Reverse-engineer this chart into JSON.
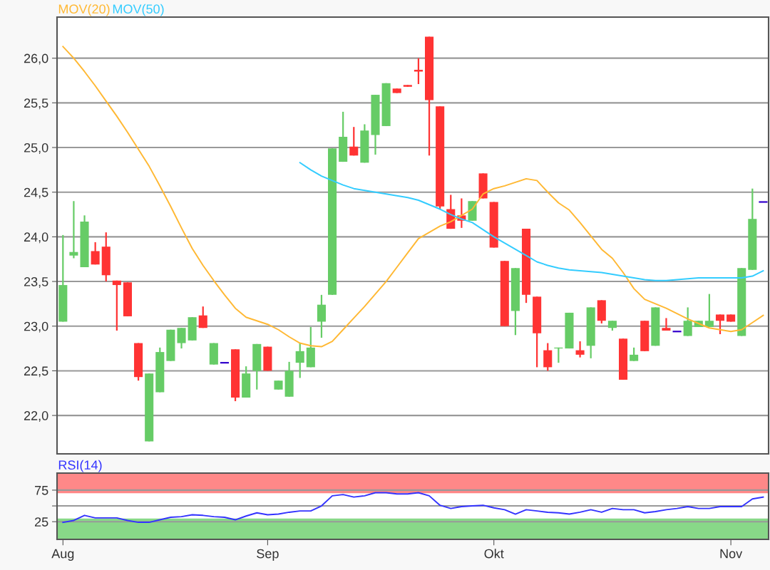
{
  "chart_data": [
    {
      "type": "candlestick",
      "legend": "top left",
      "grid": "y",
      "tick_labels": "y",
      "categories": [
        null,
        null,
        null,
        null,
        null,
        null,
        null,
        null,
        null,
        null,
        null,
        null,
        null,
        null,
        null,
        null,
        null,
        null,
        null,
        null,
        null,
        null,
        null,
        null,
        null,
        null,
        null,
        null,
        null,
        null,
        null,
        null,
        null,
        null,
        null,
        null,
        null,
        null,
        null,
        null,
        null,
        null,
        null,
        null,
        null,
        null,
        null,
        null,
        null,
        null,
        null,
        null,
        null,
        null,
        null,
        null,
        null,
        null,
        null,
        null,
        null,
        null,
        null,
        null,
        null,
        null
      ],
      "ylim": [
        21.57,
        26.46
      ],
      "yticks": [
        {
          "value": 22,
          "label": "22,0"
        },
        {
          "value": 22.5,
          "label": "22,5"
        },
        {
          "value": 23,
          "label": "23,0"
        },
        {
          "value": 23.5,
          "label": "23,5"
        },
        {
          "value": 24,
          "label": "24,0"
        },
        {
          "value": 24.5,
          "label": "24,5"
        },
        {
          "value": 25,
          "label": "25,0"
        },
        {
          "value": 25.5,
          "label": "25,5"
        },
        {
          "value": 26,
          "label": "26,0"
        }
      ],
      "ohlc": [
        [
          23.05,
          24.02,
          23.05,
          23.46
        ],
        [
          23.79,
          24.4,
          23.76,
          23.83
        ],
        [
          23.66,
          24.24,
          23.66,
          24.17
        ],
        [
          23.84,
          23.94,
          23.69,
          23.69
        ],
        [
          23.89,
          24.05,
          23.5,
          23.57
        ],
        [
          23.51,
          23.51,
          22.95,
          23.46
        ],
        [
          23.49,
          23.49,
          23.11,
          23.11
        ],
        [
          22.81,
          22.81,
          22.39,
          22.43
        ],
        [
          21.71,
          22.47,
          21.71,
          22.47
        ],
        [
          22.26,
          22.76,
          22.26,
          22.71
        ],
        [
          22.61,
          22.96,
          22.61,
          22.96
        ],
        [
          22.81,
          22.98,
          22.75,
          22.98
        ],
        [
          22.84,
          23.1,
          22.84,
          23.1
        ],
        [
          23.12,
          23.22,
          22.98,
          22.98
        ],
        [
          22.57,
          22.81,
          22.57,
          22.81
        ],
        [
          22.59,
          22.59,
          22.59,
          22.59
        ],
        [
          22.74,
          22.74,
          22.16,
          22.2
        ],
        [
          22.2,
          22.55,
          22.2,
          22.47
        ],
        [
          22.5,
          22.8,
          22.29,
          22.8
        ],
        [
          22.77,
          22.77,
          22.5,
          22.5
        ],
        [
          22.29,
          22.39,
          22.29,
          22.39
        ],
        [
          22.21,
          22.6,
          22.21,
          22.5
        ],
        [
          22.59,
          22.81,
          22.42,
          22.72
        ],
        [
          22.54,
          22.99,
          22.54,
          22.76
        ],
        [
          23.05,
          23.35,
          22.87,
          23.24
        ],
        [
          23.35,
          24.99,
          23.35,
          24.99
        ],
        [
          24.84,
          25.4,
          24.84,
          25.12
        ],
        [
          25.01,
          25.23,
          24.91,
          24.91
        ],
        [
          24.83,
          25.26,
          24.83,
          25.19
        ],
        [
          25.14,
          25.59,
          24.92,
          25.59
        ],
        [
          25.24,
          25.72,
          25.24,
          25.72
        ],
        [
          25.66,
          25.66,
          25.61,
          25.61
        ],
        [
          25.7,
          25.7,
          25.68,
          25.68
        ],
        [
          25.87,
          26.0,
          25.71,
          25.85
        ],
        [
          26.24,
          26.24,
          24.91,
          25.53
        ],
        [
          25.46,
          25.46,
          24.31,
          24.34
        ],
        [
          24.31,
          24.47,
          24.09,
          24.09
        ],
        [
          24.24,
          24.43,
          24.1,
          24.18
        ],
        [
          24.18,
          24.4,
          24.18,
          24.4
        ],
        [
          24.71,
          24.71,
          24.43,
          24.43
        ],
        [
          24.39,
          24.39,
          23.88,
          23.88
        ],
        [
          23.73,
          23.73,
          23.0,
          23.0
        ],
        [
          23.17,
          23.65,
          22.9,
          23.65
        ],
        [
          24.09,
          24.09,
          23.26,
          23.35
        ],
        [
          23.33,
          23.33,
          22.54,
          22.92
        ],
        [
          22.73,
          22.81,
          22.5,
          22.54
        ],
        [
          22.75,
          22.76,
          22.59,
          22.76
        ],
        [
          22.75,
          23.15,
          22.75,
          23.15
        ],
        [
          22.73,
          22.83,
          22.65,
          22.68
        ],
        [
          22.78,
          23.21,
          22.64,
          23.21
        ],
        [
          23.29,
          23.29,
          23.03,
          23.06
        ],
        [
          22.98,
          23.06,
          22.95,
          23.06
        ],
        [
          22.86,
          22.86,
          22.4,
          22.4
        ],
        [
          22.61,
          22.76,
          22.61,
          22.68
        ],
        [
          23.06,
          23.06,
          22.72,
          22.72
        ],
        [
          22.78,
          23.21,
          22.78,
          23.21
        ],
        [
          22.98,
          23.09,
          22.95,
          22.95
        ],
        [
          22.94,
          22.94,
          22.94,
          22.94
        ],
        [
          22.89,
          23.21,
          22.89,
          23.06
        ],
        [
          22.99,
          23.06,
          22.99,
          23.06
        ],
        [
          22.99,
          23.36,
          22.99,
          23.06
        ],
        [
          23.13,
          23.13,
          22.91,
          23.06
        ],
        [
          23.13,
          23.13,
          23.05,
          23.05
        ],
        [
          22.89,
          23.65,
          22.89,
          23.65
        ],
        [
          23.63,
          24.54,
          23.63,
          24.2
        ],
        [
          24.39,
          24.39,
          24.39,
          24.39
        ]
      ],
      "colors": [
        "#66cc66",
        "#66cc66",
        "#66cc66",
        "#ff3333",
        "#ff3333",
        "#ff3333",
        "#ff3333",
        "#ff3333",
        "#66cc66",
        "#66cc66",
        "#66cc66",
        "#66cc66",
        "#66cc66",
        "#ff3333",
        "#66cc66",
        "#3300cc",
        "#ff3333",
        "#66cc66",
        "#66cc66",
        "#ff3333",
        "#66cc66",
        "#66cc66",
        "#66cc66",
        "#66cc66",
        "#66cc66",
        "#66cc66",
        "#66cc66",
        "#ff3333",
        "#66cc66",
        "#66cc66",
        "#66cc66",
        "#ff3333",
        "#ff3333",
        "#ff3333",
        "#ff3333",
        "#ff3333",
        "#ff3333",
        "#ff3333",
        "#66cc66",
        "#ff3333",
        "#ff3333",
        "#ff3333",
        "#66cc66",
        "#ff3333",
        "#ff3333",
        "#ff3333",
        "#66cc66",
        "#66cc66",
        "#ff3333",
        "#66cc66",
        "#ff3333",
        "#66cc66",
        "#ff3333",
        "#66cc66",
        "#ff3333",
        "#66cc66",
        "#ff3333",
        "#3300cc",
        "#66cc66",
        "#66cc66",
        "#66cc66",
        "#ff3333",
        "#ff3333",
        "#66cc66",
        "#66cc66",
        "#3300cc"
      ],
      "series": [
        {
          "name": "MOV(20)",
          "type": "line",
          "color": "#ffb833",
          "values": [
            26.13,
            26.0,
            25.85,
            25.69,
            25.52,
            25.35,
            25.17,
            24.98,
            24.79,
            24.57,
            24.34,
            24.1,
            23.87,
            23.68,
            23.51,
            23.35,
            23.2,
            23.1,
            23.06,
            23.02,
            22.96,
            22.88,
            22.81,
            22.78,
            22.77,
            22.83,
            22.96,
            23.09,
            23.22,
            23.36,
            23.5,
            23.66,
            23.82,
            23.98,
            24.05,
            24.12,
            24.17,
            24.24,
            24.31,
            24.48,
            24.54,
            24.57,
            24.61,
            24.65,
            24.63,
            24.5,
            24.38,
            24.3,
            24.16,
            24.01,
            23.86,
            23.76,
            23.6,
            23.42,
            23.3,
            23.25,
            23.2,
            23.14,
            23.08,
            23.03,
            22.98,
            22.96,
            22.94,
            22.96,
            23.04,
            23.12
          ]
        },
        {
          "name": "MOV(50)",
          "type": "line",
          "color": "#33ccff",
          "values": [
            null,
            null,
            null,
            null,
            null,
            null,
            null,
            null,
            null,
            null,
            null,
            null,
            null,
            null,
            null,
            null,
            null,
            null,
            null,
            null,
            null,
            null,
            24.83,
            24.75,
            24.68,
            24.63,
            24.58,
            24.54,
            24.52,
            24.5,
            24.48,
            24.46,
            24.44,
            24.41,
            24.36,
            24.31,
            24.25,
            24.2,
            24.16,
            24.08,
            24.0,
            23.93,
            23.86,
            23.79,
            23.72,
            23.68,
            23.65,
            23.63,
            23.62,
            23.61,
            23.6,
            23.58,
            23.56,
            23.54,
            23.52,
            23.51,
            23.51,
            23.52,
            23.53,
            23.54,
            23.54,
            23.54,
            23.54,
            23.54,
            23.56,
            23.62
          ]
        }
      ]
    },
    {
      "type": "line",
      "legend": "top left",
      "grid": "y",
      "categories": [
        "Aug",
        null,
        null,
        null,
        null,
        null,
        null,
        null,
        null,
        null,
        null,
        null,
        null,
        null,
        null,
        null,
        null,
        null,
        null,
        "Sep",
        null,
        null,
        null,
        null,
        null,
        null,
        null,
        null,
        null,
        null,
        null,
        null,
        null,
        null,
        null,
        null,
        null,
        null,
        null,
        null,
        "Okt",
        null,
        null,
        null,
        null,
        null,
        null,
        null,
        null,
        null,
        null,
        null,
        null,
        null,
        null,
        null,
        null,
        null,
        null,
        null,
        null,
        null,
        "Nov",
        null,
        null,
        null
      ],
      "ylim": [
        -3,
        102
      ],
      "yticks": [
        25,
        {
          "value": 50,
          "label": null
        },
        75
      ],
      "bands": [
        {
          "axis": "y",
          "from": 70,
          "to": 102,
          "color": "#ff8888"
        },
        {
          "axis": "y",
          "from": -3,
          "to": 30,
          "color": "#88d888"
        }
      ],
      "series": [
        {
          "name": "RSI(14)",
          "color": "#3333ff",
          "values": [
            24,
            27,
            35,
            31,
            31,
            31,
            27,
            24,
            24,
            28,
            32,
            33,
            36,
            35,
            33,
            32,
            28,
            34,
            39,
            36,
            37,
            40,
            42,
            42,
            50,
            66,
            68,
            64,
            66,
            71,
            71,
            69,
            69,
            71,
            66,
            51,
            46,
            49,
            50,
            51,
            47,
            44,
            37,
            44,
            42,
            40,
            39,
            37,
            40,
            44,
            40,
            46,
            44,
            44,
            39,
            41,
            44,
            46,
            49,
            46,
            46,
            49,
            49,
            49,
            61,
            64
          ]
        }
      ]
    }
  ]
}
